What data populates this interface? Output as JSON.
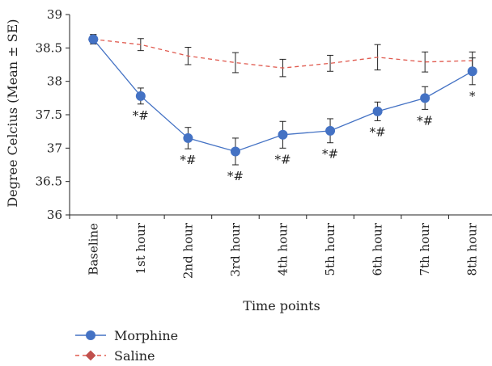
{
  "chart_data": {
    "type": "line",
    "categories": [
      "Baseline",
      "1st hour",
      "2nd hour",
      "3rd hour",
      "4th hour",
      "5th hour",
      "6th hour",
      "7th hour",
      "8th hour"
    ],
    "xlabel": "Time points",
    "ylabel": "Degree Celcius (Mean ± SE)",
    "ylim": [
      36,
      39
    ],
    "yticks": [
      "36",
      "36.5",
      "37",
      "37.5",
      "38",
      "38.5",
      "39"
    ],
    "grid": false,
    "legend_position": "bottom-left",
    "series": [
      {
        "name": "Morphine",
        "color": "#4472c4",
        "line_style": "solid",
        "marker": "circle",
        "values": [
          38.63,
          37.78,
          37.15,
          36.95,
          37.2,
          37.26,
          37.55,
          37.75,
          38.15
        ],
        "errors": [
          0.07,
          0.12,
          0.16,
          0.2,
          0.2,
          0.18,
          0.14,
          0.17,
          0.2
        ]
      },
      {
        "name": "Saline",
        "color": "#e05a4f",
        "line_style": "dashed",
        "marker": "diamond",
        "values": [
          38.63,
          38.55,
          38.38,
          38.28,
          38.2,
          38.27,
          38.36,
          38.29,
          38.31
        ],
        "errors": [
          0.07,
          0.09,
          0.13,
          0.15,
          0.13,
          0.12,
          0.19,
          0.15,
          0.13
        ]
      }
    ],
    "annotations": [
      "",
      "*#",
      "*#",
      "*#",
      "*#",
      "*#",
      "*#",
      "*#",
      "*"
    ]
  }
}
